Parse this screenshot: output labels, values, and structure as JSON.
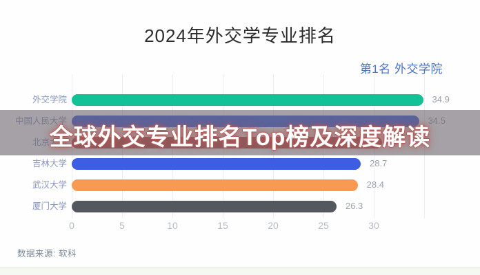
{
  "title": "2024年外交学专业排名",
  "rank_note": "第1名 外交学院",
  "banner": {
    "text": "全球外交专业排名Top榜及深度解读"
  },
  "source": "数据来源: 软科",
  "colors": {
    "teal": "#12c296",
    "blue": "#3d5de3",
    "red": "#c0453e",
    "orange": "#f89a51",
    "dark_gray": "#53575e",
    "accent_blue_text": "#4a72c6",
    "overlay_gray": "rgba(110,104,112,0.62)"
  },
  "chart_data": {
    "type": "bar",
    "orientation": "horizontal",
    "title": "2024年外交学专业排名",
    "categories": [
      "外交学院",
      "中国人民大学",
      "北京大学",
      "吉林大学",
      "武汉大学",
      "厦门大学"
    ],
    "values": [
      34.9,
      34.5,
      30.8,
      28.7,
      28.4,
      26.3
    ],
    "value_labels": [
      "34.9",
      "34.5",
      "",
      "28.7",
      "28.4",
      "26.3"
    ],
    "bar_colors": [
      "#12c296",
      "#3d5de3",
      "#c0453e",
      "#3d5de3",
      "#f89a51",
      "#53575e"
    ],
    "xlim": [
      0,
      35
    ],
    "x_ticks": [
      0,
      5,
      10,
      15,
      20,
      25,
      30
    ],
    "grid_ticks": [
      0,
      5,
      10,
      15,
      20,
      25,
      30,
      35
    ],
    "grid": true,
    "legend": false,
    "note": "third bar partially obscured by headline banner overlay"
  }
}
